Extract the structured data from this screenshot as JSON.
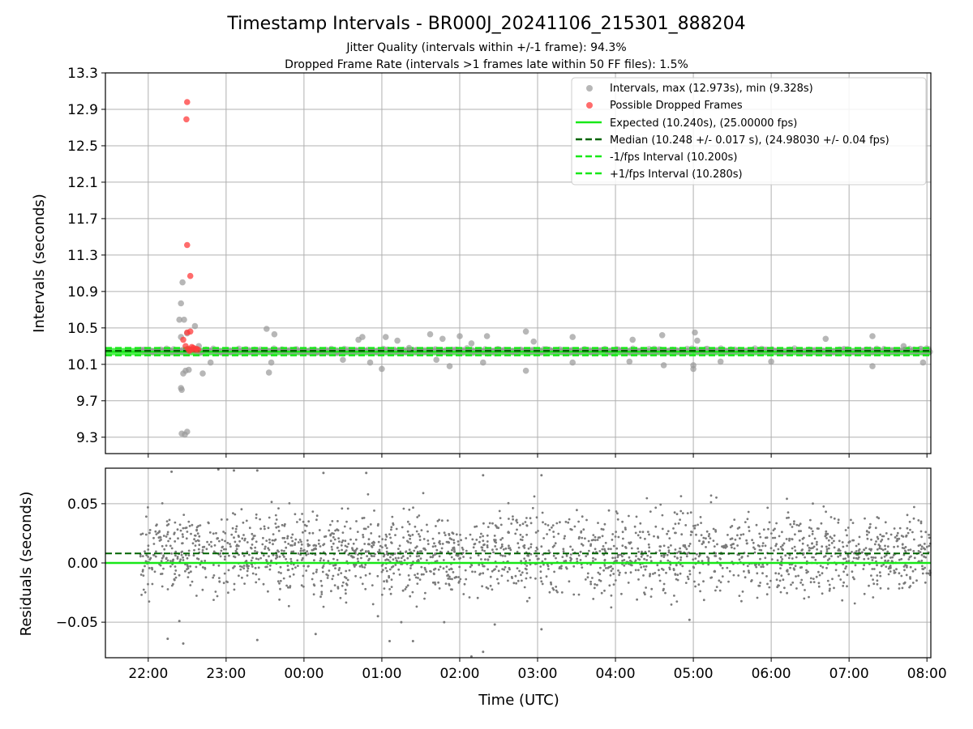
{
  "title": "Timestamp Intervals - BR000J_20241106_215301_888204",
  "subtitle_lines": [
    "Jitter Quality (intervals within +/-1 frame): 94.3%",
    "Dropped Frame Rate (intervals >1 frames late within 50 FF files): 1.5%"
  ],
  "colors": {
    "intervals": "#999999",
    "dropped": "#ff3b3b",
    "expected": "#18e818",
    "median": "#006400",
    "fps_band": "#18e818",
    "residuals": "#7a7a7a",
    "grid": "#b0b0b0"
  },
  "chart_data": [
    {
      "type": "scatter",
      "xlabel": "",
      "ylabel": "Intervals (seconds)",
      "x_axis": "time (UTC), hours relative to 00:00 on the start date; tick labels shown as HH:MM",
      "xlim": [
        -2.55,
        8.05
      ],
      "ylim": [
        9.12,
        13.3
      ],
      "yticks": [
        9.3,
        9.7,
        10.1,
        10.5,
        10.9,
        11.3,
        11.7,
        12.1,
        12.5,
        12.9,
        13.3
      ],
      "ytick_labels": [
        "9.3",
        "9.7",
        "10.1",
        "10.5",
        "10.9",
        "11.3",
        "11.7",
        "12.1",
        "12.5",
        "12.9",
        "13.3"
      ],
      "grid": true,
      "legend_position": "upper-right",
      "legend": [
        "Intervals, max (12.973s), min (9.328s)",
        "Possible Dropped Frames",
        "Expected (10.240s), (25.00000 fps)",
        "Median (10.248 +/- 0.017 s), (24.98030 +/- 0.04 fps)",
        "-1/fps Interval (10.200s)",
        "+1/fps Interval (10.280s)"
      ],
      "expected": 10.24,
      "median": 10.248,
      "minus_interval": 10.2,
      "plus_interval": 10.28,
      "series_outliers": {
        "name": "Intervals",
        "points": [
          [
            -1.57,
            9.34
          ],
          [
            -1.53,
            9.33
          ],
          [
            -1.5,
            9.36
          ],
          [
            -1.58,
            9.84
          ],
          [
            -1.57,
            9.82
          ],
          [
            -1.55,
            10.0
          ],
          [
            -1.52,
            10.03
          ],
          [
            -1.48,
            10.04
          ],
          [
            -1.3,
            10.0
          ],
          [
            -1.2,
            10.12
          ],
          [
            -0.45,
            10.01
          ],
          [
            -0.42,
            10.12
          ],
          [
            -0.48,
            10.49
          ],
          [
            -0.38,
            10.43
          ],
          [
            -1.58,
            10.4
          ],
          [
            -1.54,
            10.59
          ],
          [
            -1.6,
            10.59
          ],
          [
            -1.58,
            10.77
          ],
          [
            -1.56,
            11.0
          ],
          [
            -1.5,
            10.44
          ],
          [
            -1.4,
            10.52
          ],
          [
            -1.35,
            10.3
          ],
          [
            0.5,
            10.15
          ],
          [
            0.7,
            10.37
          ],
          [
            0.85,
            10.12
          ],
          [
            0.75,
            10.4
          ],
          [
            1.0,
            10.05
          ],
          [
            1.05,
            10.4
          ],
          [
            1.2,
            10.36
          ],
          [
            1.35,
            10.28
          ],
          [
            1.62,
            10.43
          ],
          [
            1.7,
            10.15
          ],
          [
            1.78,
            10.38
          ],
          [
            1.87,
            10.08
          ],
          [
            2.0,
            10.41
          ],
          [
            2.15,
            10.33
          ],
          [
            2.3,
            10.12
          ],
          [
            2.35,
            10.41
          ],
          [
            2.85,
            10.46
          ],
          [
            2.85,
            10.03
          ],
          [
            2.95,
            10.35
          ],
          [
            3.45,
            10.12
          ],
          [
            3.45,
            10.4
          ],
          [
            4.18,
            10.13
          ],
          [
            4.22,
            10.37
          ],
          [
            4.62,
            10.09
          ],
          [
            4.6,
            10.42
          ],
          [
            5.0,
            10.09
          ],
          [
            5.02,
            10.45
          ],
          [
            5.0,
            10.05
          ],
          [
            5.05,
            10.36
          ],
          [
            5.35,
            10.13
          ],
          [
            6.0,
            10.13
          ],
          [
            6.7,
            10.38
          ],
          [
            7.3,
            10.08
          ],
          [
            7.3,
            10.41
          ],
          [
            7.7,
            10.3
          ],
          [
            7.95,
            10.12
          ]
        ]
      },
      "series_dropped": {
        "name": "Possible Dropped Frames",
        "points": [
          [
            -1.5,
            12.98
          ],
          [
            -1.51,
            12.79
          ],
          [
            -1.5,
            11.41
          ],
          [
            -1.46,
            11.07
          ],
          [
            -1.5,
            10.45
          ],
          [
            -1.46,
            10.46
          ],
          [
            -1.55,
            10.37
          ],
          [
            -1.52,
            10.3
          ],
          [
            -1.49,
            10.27
          ],
          [
            -1.45,
            10.26
          ],
          [
            -1.42,
            10.28
          ],
          [
            -1.4,
            10.26
          ],
          [
            -1.38,
            10.27
          ],
          [
            -1.36,
            10.26
          ],
          [
            -1.47,
            10.25
          ],
          [
            -1.44,
            10.29
          ]
        ]
      }
    },
    {
      "type": "scatter",
      "xlabel": "Time (UTC)",
      "ylabel": "Residuals (seconds)",
      "xlim": [
        -2.55,
        8.05
      ],
      "ylim": [
        -0.08,
        0.08
      ],
      "yticks": [
        -0.05,
        0.0,
        0.05
      ],
      "ytick_labels": [
        "−0.05",
        "0.00",
        "0.05"
      ],
      "xticks": [
        -2,
        -1,
        0,
        1,
        2,
        3,
        4,
        5,
        6,
        7,
        8
      ],
      "xtick_labels": [
        "22:00",
        "23:00",
        "00:00",
        "01:00",
        "02:00",
        "03:00",
        "04:00",
        "05:00",
        "06:00",
        "07:00",
        "08:00"
      ],
      "grid": true,
      "expected_residual": 0.0,
      "median_residual": 0.008,
      "series_outliers": {
        "name": "Residuals",
        "points": [
          [
            -1.7,
            0.077
          ],
          [
            -1.1,
            0.079
          ],
          [
            -0.9,
            0.078
          ],
          [
            -0.6,
            0.078
          ],
          [
            0.25,
            0.076
          ],
          [
            0.8,
            0.076
          ],
          [
            2.3,
            0.074
          ],
          [
            3.05,
            0.074
          ],
          [
            -1.75,
            -0.064
          ],
          [
            -1.55,
            -0.068
          ],
          [
            -0.6,
            -0.065
          ],
          [
            0.15,
            -0.06
          ],
          [
            1.1,
            -0.066
          ],
          [
            1.4,
            -0.066
          ],
          [
            1.8,
            -0.05
          ],
          [
            2.15,
            -0.079
          ],
          [
            2.3,
            -0.075
          ],
          [
            3.05,
            -0.056
          ],
          [
            4.95,
            -0.048
          ],
          [
            -1.6,
            -0.049
          ],
          [
            0.95,
            -0.045
          ],
          [
            1.25,
            -0.05
          ],
          [
            2.45,
            -0.052
          ]
        ]
      }
    }
  ]
}
